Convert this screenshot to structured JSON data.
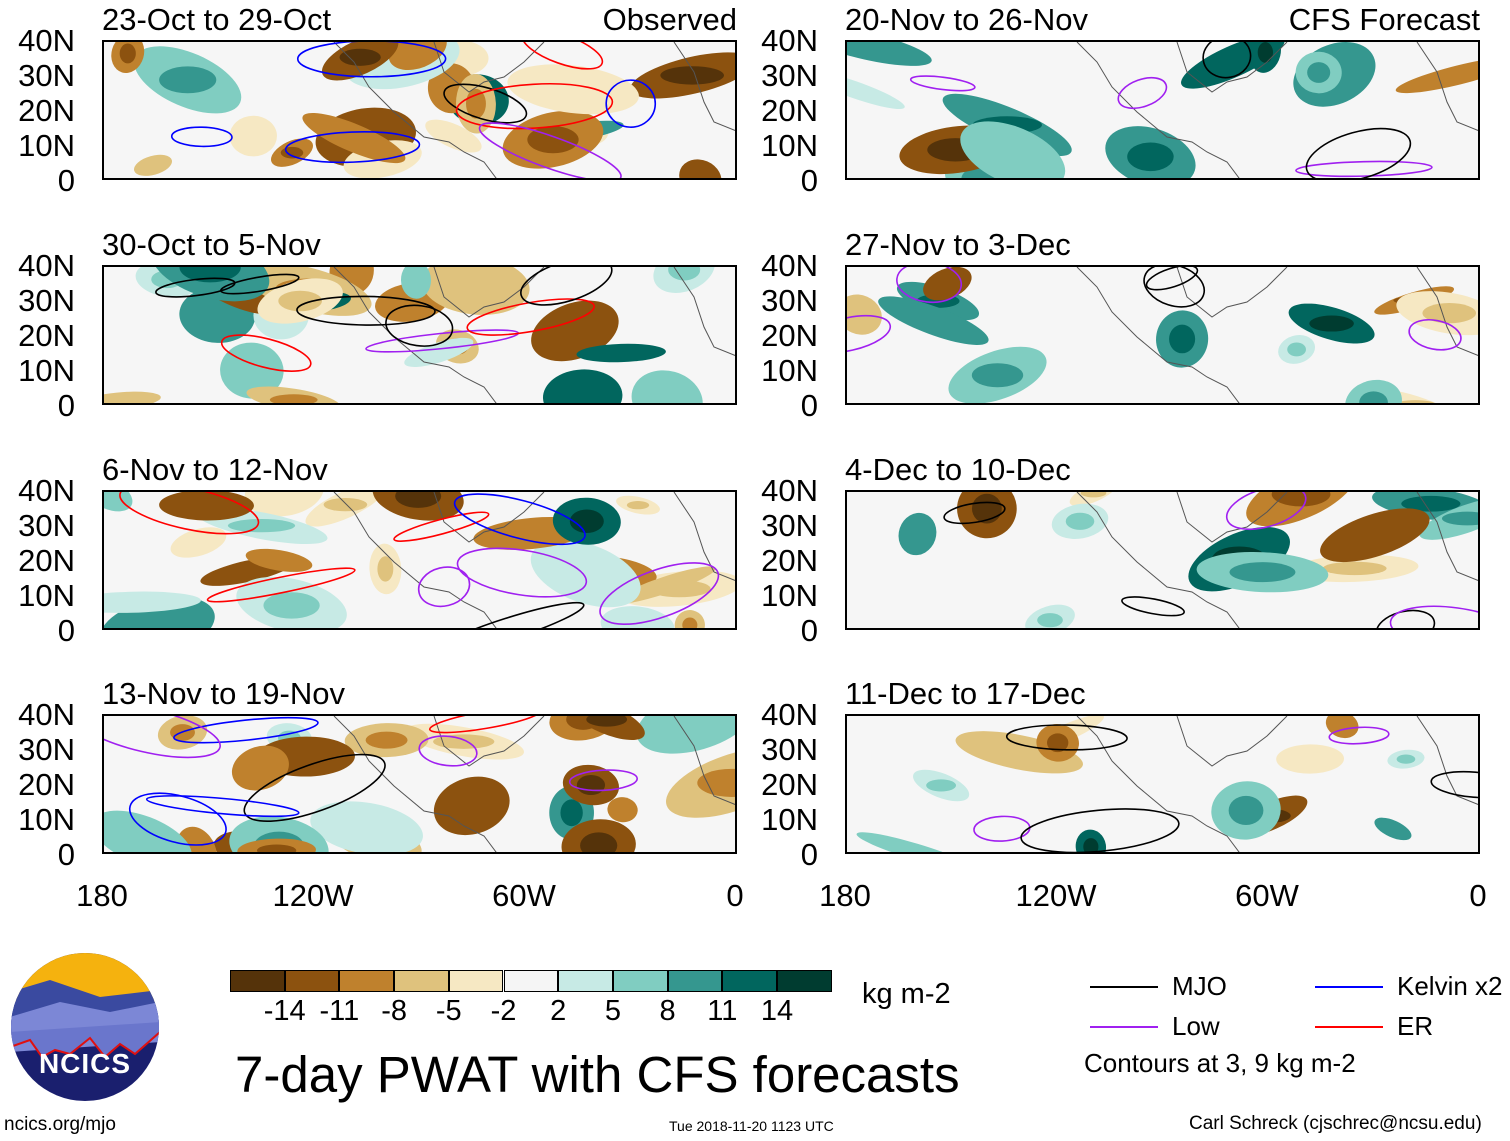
{
  "panels": [
    {
      "title": "23-Oct to 29-Oct",
      "tag": "Observed",
      "column": "left",
      "row": 0
    },
    {
      "title": "30-Oct to 5-Nov",
      "tag": "",
      "column": "left",
      "row": 1
    },
    {
      "title": "6-Nov to 12-Nov",
      "tag": "",
      "column": "left",
      "row": 2
    },
    {
      "title": "13-Nov to 19-Nov",
      "tag": "",
      "column": "left",
      "row": 3
    },
    {
      "title": "20-Nov to 26-Nov",
      "tag": "CFS Forecast",
      "column": "right",
      "row": 0
    },
    {
      "title": "27-Nov to 3-Dec",
      "tag": "",
      "column": "right",
      "row": 1
    },
    {
      "title": "4-Dec to 10-Dec",
      "tag": "",
      "column": "right",
      "row": 2
    },
    {
      "title": "11-Dec to 17-Dec",
      "tag": "",
      "column": "right",
      "row": 3
    }
  ],
  "chart_data": {
    "type": "heatmap",
    "title": "7-day PWAT with CFS forecasts",
    "ylabel_ticks": [
      "40N",
      "30N",
      "20N",
      "10N",
      "0"
    ],
    "xlabel_ticks": [
      "180",
      "120W",
      "60W",
      "0"
    ],
    "colorbar": {
      "unit": "kg m-2",
      "ticks": [
        "-14",
        "-11",
        "-8",
        "-5",
        "-2",
        "2",
        "5",
        "8",
        "11",
        "14"
      ],
      "colors": [
        "#55330a",
        "#8c520f",
        "#bf812d",
        "#dfc27d",
        "#f6e8c3",
        "#f5f5f5",
        "#c7eae5",
        "#80cdc1",
        "#35978f",
        "#01665e",
        "#003c30"
      ]
    },
    "legend": [
      {
        "label": "MJO",
        "color": "#000000"
      },
      {
        "label": "Low",
        "color": "#a020f0"
      },
      {
        "label": "Kelvin x2",
        "color": "#0000ff"
      },
      {
        "label": "ER",
        "color": "#ff0000"
      }
    ],
    "contour_note": "Contours at 3, 9 kg m-2"
  },
  "footer": {
    "url": "ncics.org/mjo",
    "timestamp": "Tue 2018-11-20 1123 UTC",
    "credit": "Carl Schreck (cjschrec@ncsu.edu)",
    "logo_text": "NCICS"
  }
}
